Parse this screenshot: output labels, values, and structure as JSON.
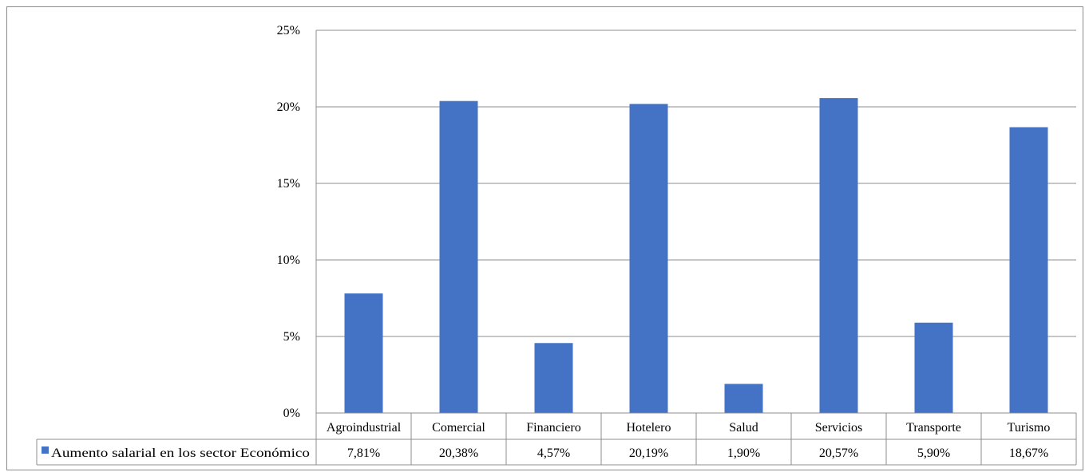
{
  "chart_data": {
    "type": "bar",
    "categories": [
      "Agroindustrial",
      "Comercial",
      "Financiero",
      "Hotelero",
      "Salud",
      "Servicios",
      "Transporte",
      "Turismo"
    ],
    "series": [
      {
        "name": "Aumento salarial en los sector Económico",
        "values": [
          7.81,
          20.38,
          4.57,
          20.19,
          1.9,
          20.57,
          5.9,
          18.67
        ],
        "labels": [
          "7,81%",
          "20,38%",
          "4,57%",
          "20,19%",
          "1,90%",
          "20,57%",
          "5,90%",
          "18,67%"
        ]
      }
    ],
    "ylim": [
      0,
      25
    ],
    "yticks": [
      0,
      5,
      10,
      15,
      20,
      25
    ],
    "ytick_labels": [
      "0%",
      "5%",
      "10%",
      "15%",
      "20%",
      "25%"
    ],
    "title": "",
    "xlabel": "",
    "ylabel": "",
    "grid": true,
    "legend": "data-table-left",
    "colors": {
      "bar": "#4472c4",
      "grid": "#8c8c8c",
      "axis": "#8c8c8c"
    }
  }
}
